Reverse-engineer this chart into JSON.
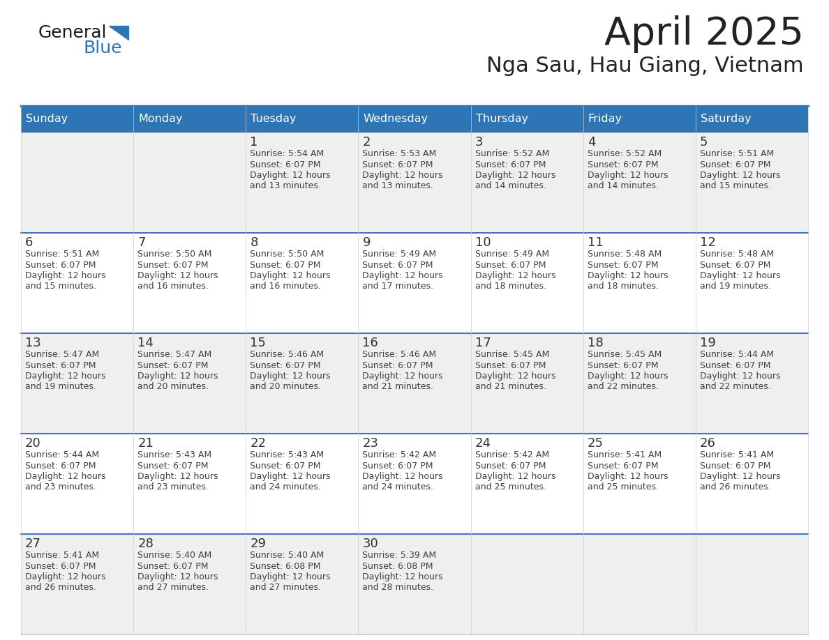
{
  "title": "April 2025",
  "subtitle": "Nga Sau, Hau Giang, Vietnam",
  "days_of_week": [
    "Sunday",
    "Monday",
    "Tuesday",
    "Wednesday",
    "Thursday",
    "Friday",
    "Saturday"
  ],
  "header_bg": "#2E75B6",
  "header_text": "#FFFFFF",
  "cell_bg_odd": "#EFEFEF",
  "cell_bg_even": "#FFFFFF",
  "row_border_color": "#4472C4",
  "day_number_color": "#333333",
  "info_text_color": "#404040",
  "title_color": "#222222",
  "subtitle_color": "#222222",
  "logo_general_color": "#1a1a1a",
  "logo_blue_color": "#2E75B6",
  "weeks": [
    [
      {
        "day": null,
        "info": null
      },
      {
        "day": null,
        "info": null
      },
      {
        "day": 1,
        "info": "Sunrise: 5:54 AM\nSunset: 6:07 PM\nDaylight: 12 hours\nand 13 minutes."
      },
      {
        "day": 2,
        "info": "Sunrise: 5:53 AM\nSunset: 6:07 PM\nDaylight: 12 hours\nand 13 minutes."
      },
      {
        "day": 3,
        "info": "Sunrise: 5:52 AM\nSunset: 6:07 PM\nDaylight: 12 hours\nand 14 minutes."
      },
      {
        "day": 4,
        "info": "Sunrise: 5:52 AM\nSunset: 6:07 PM\nDaylight: 12 hours\nand 14 minutes."
      },
      {
        "day": 5,
        "info": "Sunrise: 5:51 AM\nSunset: 6:07 PM\nDaylight: 12 hours\nand 15 minutes."
      }
    ],
    [
      {
        "day": 6,
        "info": "Sunrise: 5:51 AM\nSunset: 6:07 PM\nDaylight: 12 hours\nand 15 minutes."
      },
      {
        "day": 7,
        "info": "Sunrise: 5:50 AM\nSunset: 6:07 PM\nDaylight: 12 hours\nand 16 minutes."
      },
      {
        "day": 8,
        "info": "Sunrise: 5:50 AM\nSunset: 6:07 PM\nDaylight: 12 hours\nand 16 minutes."
      },
      {
        "day": 9,
        "info": "Sunrise: 5:49 AM\nSunset: 6:07 PM\nDaylight: 12 hours\nand 17 minutes."
      },
      {
        "day": 10,
        "info": "Sunrise: 5:49 AM\nSunset: 6:07 PM\nDaylight: 12 hours\nand 18 minutes."
      },
      {
        "day": 11,
        "info": "Sunrise: 5:48 AM\nSunset: 6:07 PM\nDaylight: 12 hours\nand 18 minutes."
      },
      {
        "day": 12,
        "info": "Sunrise: 5:48 AM\nSunset: 6:07 PM\nDaylight: 12 hours\nand 19 minutes."
      }
    ],
    [
      {
        "day": 13,
        "info": "Sunrise: 5:47 AM\nSunset: 6:07 PM\nDaylight: 12 hours\nand 19 minutes."
      },
      {
        "day": 14,
        "info": "Sunrise: 5:47 AM\nSunset: 6:07 PM\nDaylight: 12 hours\nand 20 minutes."
      },
      {
        "day": 15,
        "info": "Sunrise: 5:46 AM\nSunset: 6:07 PM\nDaylight: 12 hours\nand 20 minutes."
      },
      {
        "day": 16,
        "info": "Sunrise: 5:46 AM\nSunset: 6:07 PM\nDaylight: 12 hours\nand 21 minutes."
      },
      {
        "day": 17,
        "info": "Sunrise: 5:45 AM\nSunset: 6:07 PM\nDaylight: 12 hours\nand 21 minutes."
      },
      {
        "day": 18,
        "info": "Sunrise: 5:45 AM\nSunset: 6:07 PM\nDaylight: 12 hours\nand 22 minutes."
      },
      {
        "day": 19,
        "info": "Sunrise: 5:44 AM\nSunset: 6:07 PM\nDaylight: 12 hours\nand 22 minutes."
      }
    ],
    [
      {
        "day": 20,
        "info": "Sunrise: 5:44 AM\nSunset: 6:07 PM\nDaylight: 12 hours\nand 23 minutes."
      },
      {
        "day": 21,
        "info": "Sunrise: 5:43 AM\nSunset: 6:07 PM\nDaylight: 12 hours\nand 23 minutes."
      },
      {
        "day": 22,
        "info": "Sunrise: 5:43 AM\nSunset: 6:07 PM\nDaylight: 12 hours\nand 24 minutes."
      },
      {
        "day": 23,
        "info": "Sunrise: 5:42 AM\nSunset: 6:07 PM\nDaylight: 12 hours\nand 24 minutes."
      },
      {
        "day": 24,
        "info": "Sunrise: 5:42 AM\nSunset: 6:07 PM\nDaylight: 12 hours\nand 25 minutes."
      },
      {
        "day": 25,
        "info": "Sunrise: 5:41 AM\nSunset: 6:07 PM\nDaylight: 12 hours\nand 25 minutes."
      },
      {
        "day": 26,
        "info": "Sunrise: 5:41 AM\nSunset: 6:07 PM\nDaylight: 12 hours\nand 26 minutes."
      }
    ],
    [
      {
        "day": 27,
        "info": "Sunrise: 5:41 AM\nSunset: 6:07 PM\nDaylight: 12 hours\nand 26 minutes."
      },
      {
        "day": 28,
        "info": "Sunrise: 5:40 AM\nSunset: 6:07 PM\nDaylight: 12 hours\nand 27 minutes."
      },
      {
        "day": 29,
        "info": "Sunrise: 5:40 AM\nSunset: 6:08 PM\nDaylight: 12 hours\nand 27 minutes."
      },
      {
        "day": 30,
        "info": "Sunrise: 5:39 AM\nSunset: 6:08 PM\nDaylight: 12 hours\nand 28 minutes."
      },
      {
        "day": null,
        "info": null
      },
      {
        "day": null,
        "info": null
      },
      {
        "day": null,
        "info": null
      }
    ]
  ]
}
